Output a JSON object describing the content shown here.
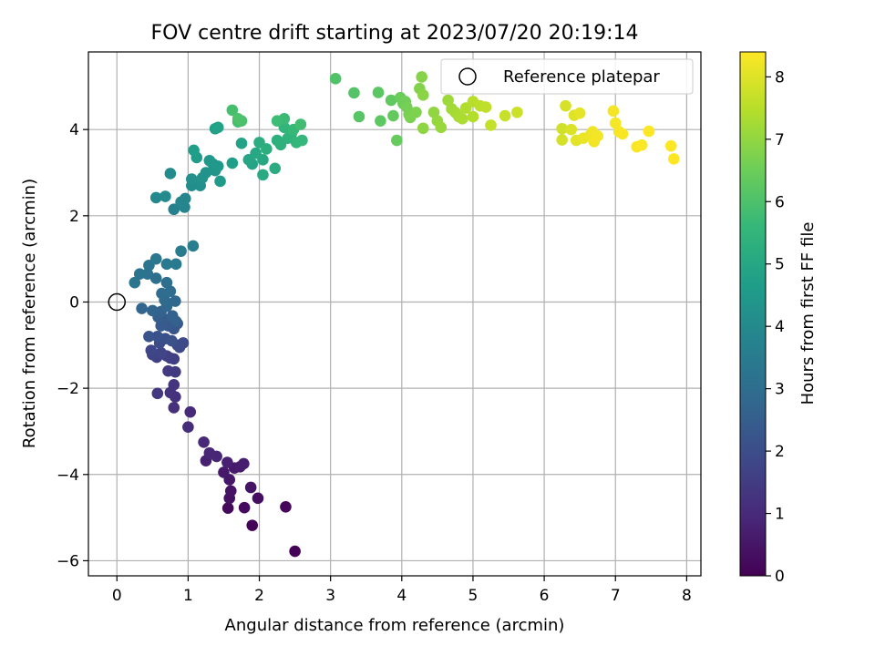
{
  "chart_data": {
    "type": "scatter",
    "title": "FOV centre drift starting at 2023/07/20 20:19:14",
    "xlabel": "Angular distance from reference (arcmin)",
    "ylabel": "Rotation from reference (arcmin)",
    "xlim": [
      -0.4,
      8.2
    ],
    "ylim": [
      -6.35,
      5.8
    ],
    "xticks": [
      0,
      1,
      2,
      3,
      4,
      5,
      6,
      7,
      8
    ],
    "yticks": [
      -6,
      -4,
      -2,
      0,
      2,
      4
    ],
    "grid": true,
    "legend": {
      "placement": "top-right",
      "entries": [
        {
          "label": "Reference platepar",
          "marker": "hollow-circle",
          "x": 0,
          "y": 0
        }
      ]
    },
    "colorbar": {
      "label": "Hours from first FF file",
      "colormap": "viridis",
      "range": [
        0,
        8.4
      ],
      "ticks": [
        0,
        1,
        2,
        3,
        4,
        5,
        6,
        7,
        8
      ]
    },
    "color_stops": [
      "#440154",
      "#482878",
      "#3e4989",
      "#31688e",
      "#26828e",
      "#1f9e89",
      "#35b779",
      "#6ece58",
      "#b5de2b",
      "#fde725"
    ],
    "points": [
      [
        2.5,
        -5.78,
        0.05
      ],
      [
        1.9,
        -5.18,
        0.1
      ],
      [
        2.37,
        -4.75,
        0.15
      ],
      [
        1.56,
        -4.78,
        0.2
      ],
      [
        1.79,
        -4.77,
        0.25
      ],
      [
        1.98,
        -4.55,
        0.3
      ],
      [
        1.58,
        -4.55,
        0.35
      ],
      [
        1.6,
        -4.38,
        0.4
      ],
      [
        1.88,
        -4.3,
        0.45
      ],
      [
        1.58,
        -4.12,
        0.5
      ],
      [
        1.5,
        -3.95,
        0.55
      ],
      [
        1.65,
        -3.85,
        0.6
      ],
      [
        1.73,
        -3.82,
        0.65
      ],
      [
        1.78,
        -3.75,
        0.7
      ],
      [
        1.55,
        -3.72,
        0.75
      ],
      [
        1.25,
        -3.68,
        0.8
      ],
      [
        1.4,
        -3.58,
        0.85
      ],
      [
        1.3,
        -3.5,
        0.9
      ],
      [
        1.22,
        -3.25,
        0.95
      ],
      [
        1.03,
        -2.55,
        1.0
      ],
      [
        1.0,
        -2.9,
        1.1
      ],
      [
        0.8,
        -2.45,
        1.15
      ],
      [
        0.82,
        -2.2,
        1.2
      ],
      [
        0.75,
        -2.1,
        1.25
      ],
      [
        0.8,
        -1.92,
        1.3
      ],
      [
        0.57,
        -2.12,
        1.35
      ],
      [
        0.72,
        -1.6,
        1.4
      ],
      [
        0.82,
        -1.62,
        1.45
      ],
      [
        0.75,
        -1.3,
        1.5
      ],
      [
        0.8,
        -1.32,
        1.55
      ],
      [
        0.7,
        -1.25,
        1.6
      ],
      [
        0.56,
        -1.28,
        1.65
      ],
      [
        0.5,
        -1.22,
        1.7
      ],
      [
        0.62,
        -1.18,
        1.75
      ],
      [
        0.48,
        -1.12,
        1.8
      ],
      [
        0.88,
        -1.05,
        1.85
      ],
      [
        0.93,
        -0.95,
        1.9
      ],
      [
        0.85,
        -1.0,
        1.95
      ],
      [
        0.6,
        -0.95,
        2.0
      ],
      [
        0.68,
        -0.85,
        2.05
      ],
      [
        0.77,
        -0.9,
        2.1
      ],
      [
        0.57,
        -0.8,
        2.15
      ],
      [
        0.45,
        -0.8,
        2.2
      ],
      [
        0.8,
        -0.62,
        2.25
      ],
      [
        0.85,
        -0.5,
        2.3
      ],
      [
        0.72,
        -0.55,
        2.35
      ],
      [
        0.62,
        -0.55,
        2.4
      ],
      [
        0.67,
        -0.4,
        2.45
      ],
      [
        0.58,
        -0.35,
        2.5
      ],
      [
        0.83,
        -0.45,
        2.55
      ],
      [
        0.78,
        -0.32,
        2.6
      ],
      [
        0.62,
        -0.22,
        2.65
      ],
      [
        0.5,
        -0.2,
        2.7
      ],
      [
        0.35,
        -0.15,
        2.75
      ],
      [
        0.7,
        -0.1,
        2.8
      ],
      [
        0.82,
        0.02,
        2.85
      ],
      [
        0.67,
        0.05,
        2.9
      ],
      [
        0.63,
        0.2,
        2.95
      ],
      [
        0.75,
        0.25,
        3.0
      ],
      [
        0.7,
        0.45,
        3.05
      ],
      [
        0.55,
        0.55,
        3.1
      ],
      [
        0.43,
        0.65,
        3.15
      ],
      [
        0.32,
        0.65,
        3.2
      ],
      [
        0.25,
        0.45,
        3.25
      ],
      [
        0.45,
        0.85,
        3.3
      ],
      [
        0.55,
        1.0,
        3.35
      ],
      [
        0.7,
        0.88,
        3.4
      ],
      [
        0.83,
        0.88,
        3.45
      ],
      [
        0.9,
        1.18,
        3.5
      ],
      [
        1.07,
        1.3,
        3.55
      ],
      [
        0.8,
        2.15,
        3.7
      ],
      [
        0.95,
        2.2,
        3.8
      ],
      [
        0.96,
        2.4,
        3.85
      ],
      [
        0.9,
        2.32,
        3.9
      ],
      [
        0.55,
        2.42,
        3.95
      ],
      [
        0.68,
        2.45,
        4.0
      ],
      [
        0.75,
        2.98,
        4.05
      ],
      [
        1.05,
        2.7,
        4.1
      ],
      [
        1.17,
        2.7,
        4.15
      ],
      [
        1.05,
        2.85,
        4.2
      ],
      [
        1.2,
        2.88,
        4.25
      ],
      [
        1.25,
        3.0,
        4.3
      ],
      [
        1.38,
        3.05,
        4.35
      ],
      [
        1.35,
        3.2,
        4.4
      ],
      [
        1.3,
        3.28,
        4.45
      ],
      [
        1.42,
        3.15,
        4.5
      ],
      [
        1.45,
        2.8,
        4.55
      ],
      [
        1.12,
        3.35,
        4.6
      ],
      [
        1.08,
        3.52,
        4.65
      ],
      [
        1.62,
        3.22,
        4.7
      ],
      [
        1.38,
        4.02,
        4.75
      ],
      [
        1.42,
        4.05,
        4.8
      ],
      [
        1.75,
        3.68,
        4.85
      ],
      [
        1.9,
        3.2,
        4.9
      ],
      [
        1.85,
        3.3,
        4.95
      ],
      [
        1.95,
        3.45,
        5.0
      ],
      [
        2.05,
        3.3,
        5.05
      ],
      [
        2.05,
        2.95,
        5.1
      ],
      [
        2.22,
        3.1,
        5.15
      ],
      [
        2.0,
        3.7,
        5.2
      ],
      [
        2.1,
        3.55,
        5.25
      ],
      [
        2.25,
        3.75,
        5.3
      ],
      [
        2.3,
        3.65,
        5.35
      ],
      [
        2.4,
        3.8,
        5.4
      ],
      [
        2.45,
        3.9,
        5.45
      ],
      [
        2.35,
        4.05,
        5.5
      ],
      [
        2.52,
        3.7,
        5.55
      ],
      [
        2.6,
        3.75,
        5.6
      ],
      [
        2.48,
        4.0,
        5.65
      ],
      [
        2.35,
        4.25,
        5.7
      ],
      [
        2.25,
        4.2,
        5.75
      ],
      [
        2.58,
        4.12,
        5.8
      ],
      [
        1.7,
        4.18,
        5.85
      ],
      [
        1.62,
        4.45,
        5.9
      ],
      [
        1.75,
        4.2,
        5.95
      ],
      [
        1.7,
        4.25,
        6.0
      ],
      [
        3.07,
        5.18,
        6.05
      ],
      [
        3.33,
        4.85,
        6.1
      ],
      [
        3.4,
        4.3,
        6.15
      ],
      [
        3.67,
        4.86,
        6.2
      ],
      [
        3.7,
        4.2,
        6.25
      ],
      [
        3.85,
        4.68,
        6.3
      ],
      [
        3.88,
        4.32,
        6.35
      ],
      [
        3.93,
        3.75,
        6.4
      ],
      [
        3.98,
        4.74,
        6.45
      ],
      [
        4.02,
        4.6,
        6.5
      ],
      [
        4.05,
        4.65,
        6.55
      ],
      [
        4.07,
        4.52,
        6.6
      ],
      [
        4.1,
        4.35,
        6.65
      ],
      [
        4.12,
        4.28,
        6.7
      ],
      [
        4.2,
        4.4,
        6.75
      ],
      [
        4.25,
        4.95,
        6.8
      ],
      [
        4.28,
        5.22,
        6.85
      ],
      [
        4.3,
        4.8,
        6.9
      ],
      [
        4.3,
        4.03,
        6.95
      ],
      [
        4.45,
        4.4,
        7.0
      ],
      [
        4.5,
        4.2,
        7.05
      ],
      [
        4.55,
        4.05,
        7.1
      ],
      [
        4.65,
        4.68,
        7.15
      ],
      [
        4.7,
        4.48,
        7.2
      ],
      [
        4.75,
        4.4,
        7.25
      ],
      [
        4.8,
        4.3,
        7.3
      ],
      [
        4.85,
        4.25,
        7.35
      ],
      [
        4.9,
        4.5,
        7.4
      ],
      [
        5.0,
        4.3,
        7.45
      ],
      [
        5.0,
        4.65,
        7.5
      ],
      [
        5.1,
        4.55,
        7.55
      ],
      [
        5.18,
        4.52,
        7.6
      ],
      [
        5.25,
        4.1,
        7.65
      ],
      [
        5.45,
        4.32,
        7.7
      ],
      [
        5.62,
        4.4,
        7.75
      ],
      [
        6.25,
        4.02,
        7.8
      ],
      [
        6.25,
        3.76,
        7.85
      ],
      [
        6.3,
        4.55,
        7.9
      ],
      [
        6.38,
        4.0,
        7.95
      ],
      [
        6.42,
        4.33,
        8.0
      ],
      [
        6.45,
        3.75,
        8.05
      ],
      [
        6.5,
        4.38,
        8.1
      ],
      [
        6.55,
        3.8,
        8.15
      ],
      [
        6.65,
        3.88,
        8.2
      ],
      [
        6.68,
        3.95,
        8.22
      ],
      [
        6.7,
        3.72,
        8.24
      ],
      [
        6.75,
        3.85,
        8.26
      ],
      [
        6.97,
        4.43,
        8.28
      ],
      [
        7.0,
        4.15,
        8.3
      ],
      [
        7.05,
        3.95,
        8.32
      ],
      [
        7.1,
        3.9,
        8.34
      ],
      [
        7.3,
        3.6,
        8.35
      ],
      [
        7.37,
        3.64,
        8.36
      ],
      [
        7.47,
        3.96,
        8.38
      ],
      [
        7.78,
        3.62,
        8.39
      ],
      [
        7.82,
        3.32,
        8.4
      ]
    ]
  }
}
